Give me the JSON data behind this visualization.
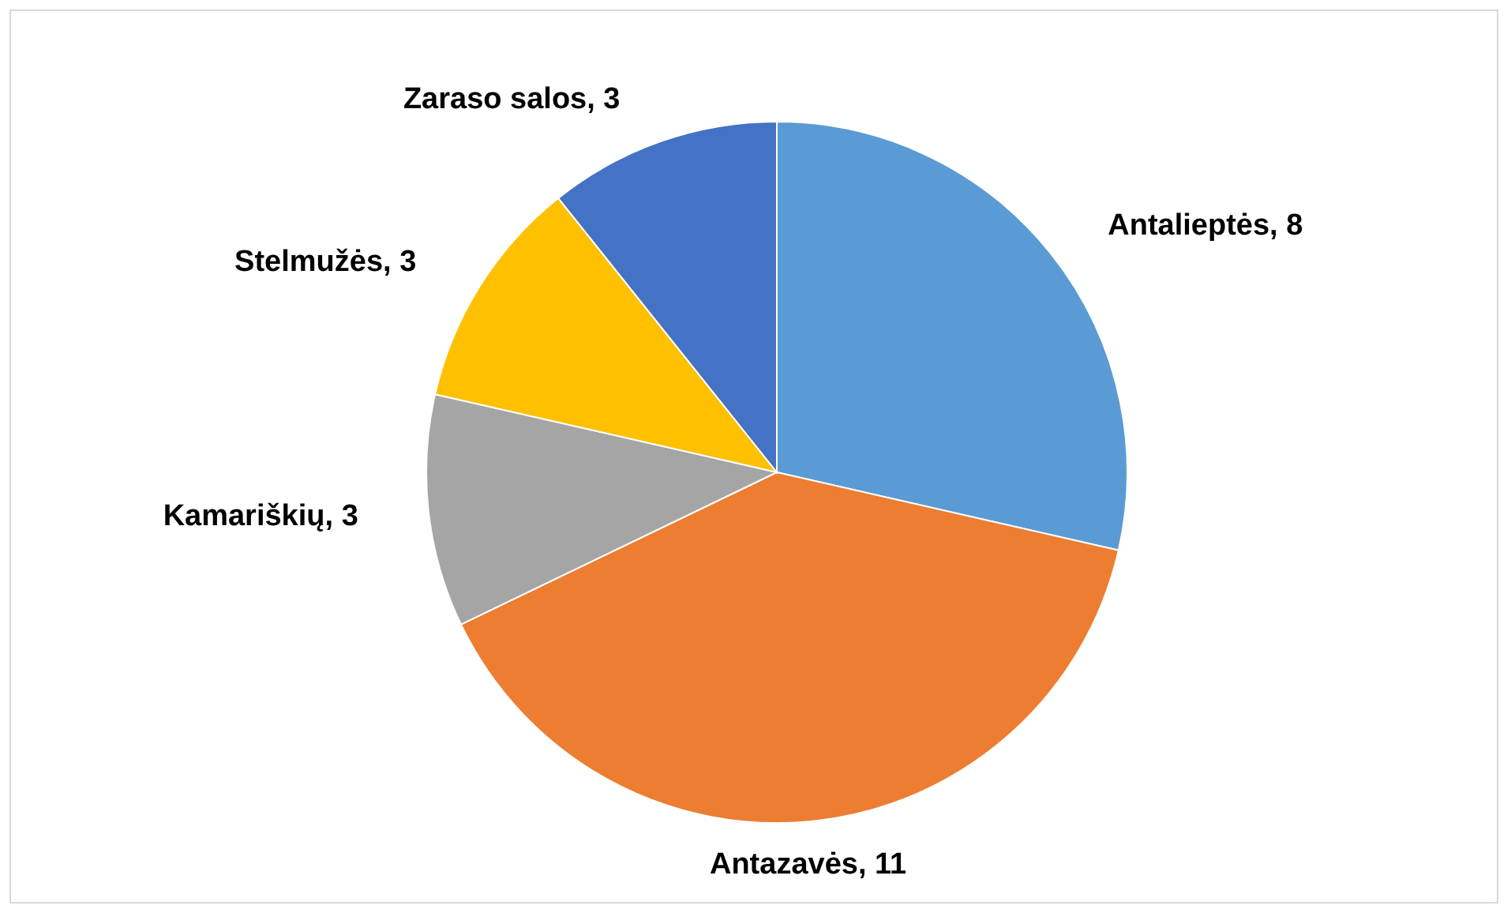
{
  "chart_data": {
    "type": "pie",
    "categories": [
      "Antalieptės",
      "Antazavės",
      "Kamariškių",
      "Stelmužės",
      "Zaraso salos"
    ],
    "values": [
      8,
      11,
      3,
      3,
      3
    ],
    "value_labels": [
      ", 8",
      ", 11",
      ", 3",
      ", 3",
      ", 3"
    ],
    "colors": [
      "#5b9bd5",
      "#ed7d31",
      "#a5a5a5",
      "#ffc000",
      "#4472c4"
    ],
    "legend": false
  }
}
